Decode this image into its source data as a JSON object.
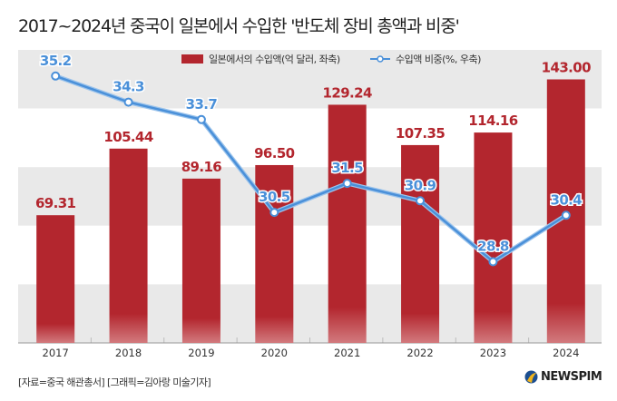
{
  "title": "2017~2024년 중국이 일본에서 수입한 '반도체 장비 총액과 비중'",
  "source": "[자료=중국 해관총서] [그래픽=김아랑 미술기자]",
  "logo": "NEWSPIM",
  "chart_data": {
    "type": "bar+line",
    "categories": [
      "2017",
      "2018",
      "2019",
      "2020",
      "2021",
      "2022",
      "2023",
      "2024"
    ],
    "series": [
      {
        "name": "일본에서의 수입액(억 달러, 좌축)",
        "type": "bar",
        "axis": "left",
        "color": "#b3262e",
        "values": [
          69.31,
          105.44,
          89.16,
          96.5,
          129.24,
          107.35,
          114.16,
          143.0
        ],
        "labels": [
          "69.31",
          "105.44",
          "89.16",
          "96.50",
          "129.24",
          "107.35",
          "114.16",
          "143.00"
        ]
      },
      {
        "name": "수입액 비중(%, 우축)",
        "type": "line",
        "axis": "right",
        "color": "#4a90d9",
        "values": [
          35.2,
          34.3,
          33.7,
          30.5,
          31.5,
          30.9,
          28.8,
          30.4
        ],
        "labels": [
          "35.2",
          "34.3",
          "33.7",
          "30.5",
          "31.5",
          "30.9",
          "28.8",
          "30.4"
        ]
      }
    ],
    "ylim_left": [
      0,
      159
    ],
    "ylim_right": [
      26,
      36.1
    ],
    "grid": "alternating bands",
    "legend": "top-center"
  }
}
